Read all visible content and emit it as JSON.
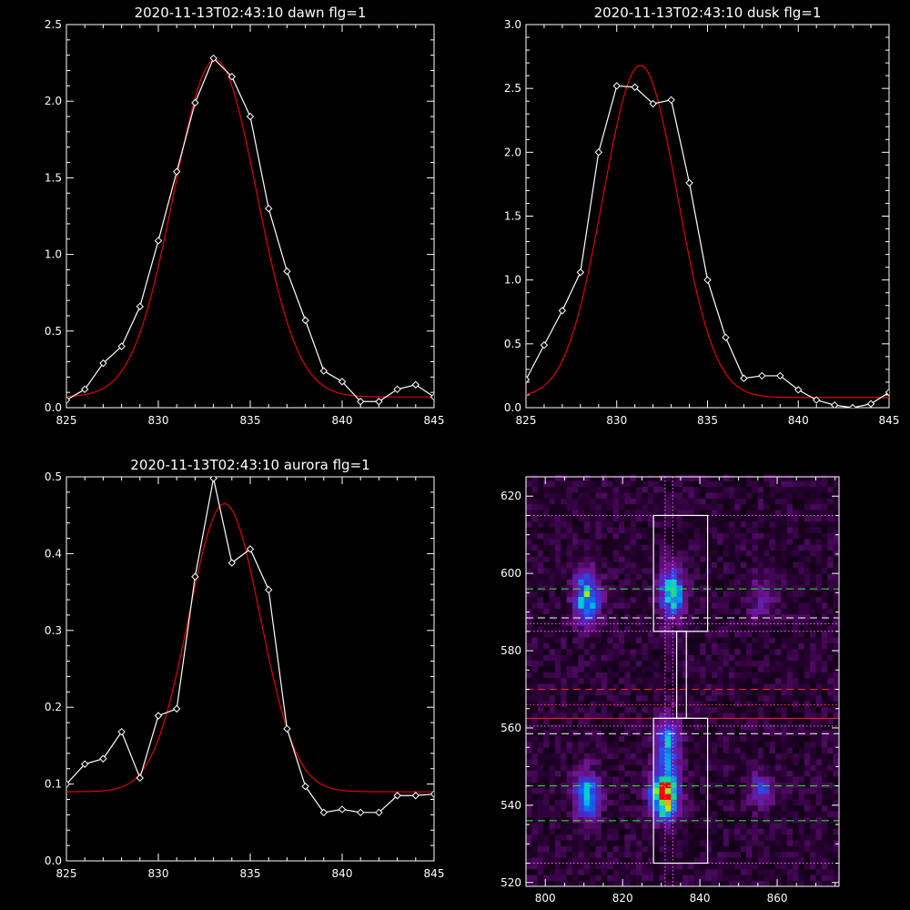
{
  "chart_data": [
    {
      "type": "line",
      "title": "2020-11-13T02:43:10 dawn flg=1",
      "xlim": [
        825,
        845
      ],
      "ylim": [
        0,
        2.5
      ],
      "xticks": [
        825,
        830,
        835,
        840,
        845
      ],
      "yticks": [
        0.0,
        0.5,
        1.0,
        1.5,
        2.0,
        2.5
      ],
      "ytick_labels": [
        "0.0",
        "0.5",
        "1.0",
        "1.5",
        "2.0",
        "2.5"
      ],
      "series": [
        {
          "kind": "observed",
          "color": "#ffffff",
          "marker": "diamond",
          "x": [
            825,
            826,
            827,
            828,
            829,
            830,
            831,
            832,
            833,
            834,
            835,
            836,
            837,
            838,
            839,
            840,
            841,
            842,
            843,
            844,
            845
          ],
          "y": [
            0.05,
            0.12,
            0.29,
            0.4,
            0.66,
            1.09,
            1.54,
            1.99,
            2.28,
            2.16,
            1.9,
            1.3,
            0.89,
            0.57,
            0.24,
            0.17,
            0.04,
            0.04,
            0.12,
            0.15,
            0.07
          ]
        },
        {
          "kind": "gaussian-fit",
          "color": "#e00000",
          "amplitude": 2.2,
          "center": 833.1,
          "sigma": 2.25,
          "baseline": 0.07
        }
      ]
    },
    {
      "type": "line",
      "title": "2020-11-13T02:43:10 dusk flg=1",
      "xlim": [
        825,
        845
      ],
      "ylim": [
        0,
        3.0
      ],
      "xticks": [
        825,
        830,
        835,
        840,
        845
      ],
      "yticks": [
        0.0,
        0.5,
        1.0,
        1.5,
        2.0,
        2.5,
        3.0
      ],
      "ytick_labels": [
        "0.0",
        "0.5",
        "1.0",
        "1.5",
        "2.0",
        "2.5",
        "3.0"
      ],
      "series": [
        {
          "kind": "observed",
          "color": "#ffffff",
          "marker": "diamond",
          "x": [
            825,
            826,
            827,
            828,
            829,
            830,
            831,
            832,
            833,
            834,
            835,
            836,
            837,
            838,
            839,
            840,
            841,
            842,
            843,
            844,
            845
          ],
          "y": [
            0.22,
            0.49,
            0.76,
            1.06,
            2.0,
            2.52,
            2.51,
            2.38,
            2.41,
            1.76,
            1.0,
            0.55,
            0.23,
            0.25,
            0.25,
            0.14,
            0.06,
            0.02,
            0.0,
            0.03,
            0.12
          ]
        },
        {
          "kind": "gaussian-fit",
          "color": "#e00000",
          "amplitude": 2.6,
          "center": 831.3,
          "sigma": 2.05,
          "baseline": 0.08
        }
      ]
    },
    {
      "type": "line",
      "title": "2020-11-13T02:43:10 aurora flg=1",
      "xlim": [
        825,
        845
      ],
      "ylim": [
        0,
        0.5
      ],
      "xticks": [
        825,
        830,
        835,
        840,
        845
      ],
      "yticks": [
        0.0,
        0.1,
        0.2,
        0.3,
        0.4,
        0.5
      ],
      "ytick_labels": [
        "0.0",
        "0.1",
        "0.2",
        "0.3",
        "0.4",
        "0.5"
      ],
      "series": [
        {
          "kind": "observed",
          "color": "#ffffff",
          "marker": "diamond",
          "x": [
            825,
            826,
            827,
            828,
            829,
            830,
            831,
            832,
            833,
            834,
            835,
            836,
            837,
            838,
            839,
            840,
            841,
            842,
            843,
            844,
            845
          ],
          "y": [
            0.1,
            0.126,
            0.133,
            0.168,
            0.108,
            0.189,
            0.198,
            0.37,
            0.498,
            0.388,
            0.406,
            0.353,
            0.172,
            0.097,
            0.063,
            0.067,
            0.063,
            0.063,
            0.085,
            0.085,
            0.087
          ]
        },
        {
          "kind": "gaussian-fit",
          "color": "#e00000",
          "amplitude": 0.375,
          "center": 833.6,
          "sigma": 1.95,
          "baseline": 0.09
        }
      ]
    },
    {
      "type": "heatmap",
      "title": "",
      "xlim": [
        795,
        876
      ],
      "ylim": [
        519,
        625
      ],
      "xticks": [
        800,
        820,
        840,
        860
      ],
      "yticks": [
        520,
        540,
        560,
        580,
        600,
        620
      ],
      "colormap": "rainbow",
      "hotspots": [
        {
          "x": 810,
          "y": 593,
          "peak": 0.55,
          "sx": 2.2,
          "sy": 4.5
        },
        {
          "x": 810,
          "y": 542,
          "peak": 0.55,
          "sx": 2.2,
          "sy": 4.0
        },
        {
          "x": 832,
          "y": 594,
          "peak": 0.6,
          "sx": 2.0,
          "sy": 4.5
        },
        {
          "x": 830,
          "y": 542,
          "peak": 1.0,
          "sx": 2.2,
          "sy": 4.0
        },
        {
          "x": 831,
          "y": 555,
          "peak": 0.45,
          "sx": 2.0,
          "sy": 5.0
        },
        {
          "x": 855,
          "y": 543,
          "peak": 0.3,
          "sx": 2.0,
          "sy": 3.0
        },
        {
          "x": 855,
          "y": 592,
          "peak": 0.15,
          "sx": 2.5,
          "sy": 4.0
        }
      ],
      "boxes": [
        {
          "x0": 828,
          "x1": 842,
          "y0": 585,
          "y1": 615,
          "color": "#ffffff"
        },
        {
          "x0": 828,
          "x1": 842,
          "y0": 525,
          "y1": 562.5,
          "color": "#ffffff"
        },
        {
          "x0": 834,
          "x1": 836.5,
          "y0": 562.5,
          "y1": 585,
          "color": "#ffffff"
        }
      ],
      "hlines": [
        {
          "y": 615,
          "color": "#ff66ff",
          "style": "dotted"
        },
        {
          "y": 596,
          "color": "#33ee33",
          "style": "dashed"
        },
        {
          "y": 588.5,
          "color": "#ffffff",
          "style": "dashed"
        },
        {
          "y": 587,
          "color": "#ff66ff",
          "style": "dotted"
        },
        {
          "y": 585,
          "color": "#ff66ff",
          "style": "dotted"
        },
        {
          "y": 570,
          "color": "#ff2020",
          "style": "dashed"
        },
        {
          "y": 566,
          "color": "#ff4040",
          "style": "dotted"
        },
        {
          "y": 562.5,
          "color": "#ff2020",
          "style": "solid"
        },
        {
          "y": 560.5,
          "color": "#ff66ff",
          "style": "dotted"
        },
        {
          "y": 558.5,
          "color": "#ffffff",
          "style": "dashed"
        },
        {
          "y": 545,
          "color": "#33ee33",
          "style": "dashed"
        },
        {
          "y": 536,
          "color": "#33ee33",
          "style": "dashed"
        },
        {
          "y": 525,
          "color": "#ff66ff",
          "style": "dotted"
        }
      ],
      "vlines": [
        {
          "x": 831,
          "color": "#ff66ff",
          "style": "dotted"
        },
        {
          "x": 833,
          "color": "#ff66ff",
          "style": "dotted"
        }
      ]
    }
  ]
}
